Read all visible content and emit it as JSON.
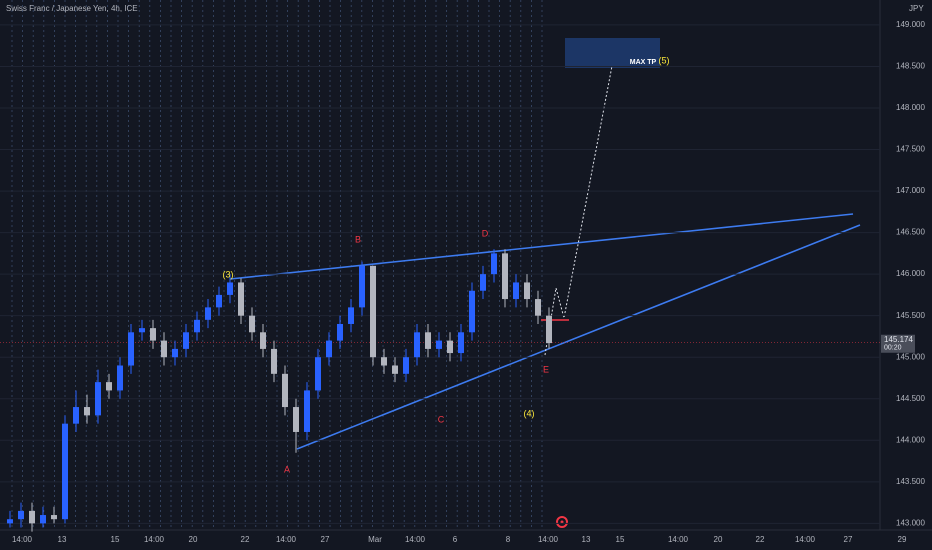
{
  "chart_data": {
    "type": "candlestick",
    "title": "Swiss Franc / Japanese Yen, 4h, ICE",
    "y_unit": "JPY",
    "open": [
      143.0,
      143.05,
      143.15,
      143.0,
      143.1,
      143.05,
      144.2,
      144.4,
      144.3,
      144.7,
      144.6,
      144.9,
      145.3,
      145.35,
      145.2,
      145.0,
      145.1,
      145.3,
      145.45,
      145.6,
      145.75,
      145.9,
      145.5,
      145.3,
      145.1,
      144.8,
      144.4,
      144.1,
      144.6,
      145.0,
      145.2,
      145.4,
      145.6,
      146.1,
      145.0,
      144.9,
      144.8,
      145.0,
      145.3,
      145.1,
      145.2,
      145.05,
      145.3,
      145.8,
      146.0,
      146.25,
      145.7,
      145.9,
      145.7,
      145.5
    ],
    "high": [
      143.15,
      143.25,
      143.25,
      143.2,
      143.2,
      144.3,
      144.6,
      144.55,
      144.85,
      144.8,
      145.0,
      145.4,
      145.45,
      145.45,
      145.3,
      145.2,
      145.4,
      145.55,
      145.7,
      145.85,
      146.0,
      145.95,
      145.6,
      145.4,
      145.2,
      144.9,
      144.5,
      144.7,
      145.1,
      145.3,
      145.5,
      145.7,
      146.15,
      146.1,
      145.1,
      145.0,
      145.1,
      145.4,
      145.4,
      145.3,
      145.3,
      145.4,
      145.9,
      146.1,
      146.3,
      146.3,
      146.0,
      146.0,
      145.8,
      145.6
    ],
    "low": [
      142.95,
      142.95,
      142.9,
      142.95,
      143.0,
      143.0,
      144.1,
      144.2,
      144.2,
      144.5,
      144.5,
      144.8,
      145.2,
      145.1,
      144.9,
      144.9,
      145.0,
      145.2,
      145.35,
      145.5,
      145.65,
      145.4,
      145.2,
      145.0,
      144.7,
      144.3,
      143.85,
      144.0,
      144.5,
      144.9,
      145.1,
      145.3,
      145.5,
      144.9,
      144.8,
      144.7,
      144.7,
      144.9,
      145.0,
      145.0,
      144.95,
      144.95,
      145.2,
      145.7,
      145.9,
      145.6,
      145.6,
      145.6,
      145.4,
      145.1
    ],
    "close": [
      143.05,
      143.15,
      143.0,
      143.1,
      143.05,
      144.2,
      144.4,
      144.3,
      144.7,
      144.6,
      144.9,
      145.3,
      145.35,
      145.2,
      145.0,
      145.1,
      145.3,
      145.45,
      145.6,
      145.75,
      145.9,
      145.5,
      145.3,
      145.1,
      144.8,
      144.4,
      144.1,
      144.6,
      145.0,
      145.2,
      145.4,
      145.6,
      146.1,
      145.0,
      144.9,
      144.8,
      145.0,
      145.3,
      145.1,
      145.2,
      145.05,
      145.3,
      145.8,
      146.0,
      146.25,
      145.7,
      145.9,
      145.7,
      145.5,
      145.17
    ],
    "up_color": "#2962ff",
    "down_color": "#b2b5be",
    "ylim": [
      142.92,
      149.3
    ],
    "yticks": [
      {
        "value": 143,
        "label": "143.000"
      },
      {
        "value": 143.5,
        "label": "143.500"
      },
      {
        "value": 144,
        "label": "144.000"
      },
      {
        "value": 144.5,
        "label": "144.500"
      },
      {
        "value": 145,
        "label": "145.000"
      },
      {
        "value": 145.5,
        "label": "145.500"
      },
      {
        "value": 146,
        "label": "146.000"
      },
      {
        "value": 146.5,
        "label": "146.500"
      },
      {
        "value": 147,
        "label": "147.000"
      },
      {
        "value": 147.5,
        "label": "147.500"
      },
      {
        "value": 148,
        "label": "148.000"
      },
      {
        "value": 148.5,
        "label": "148.500"
      },
      {
        "value": 149,
        "label": "149.000"
      }
    ],
    "x_labels": [
      "14:00",
      "13",
      "15",
      "14:00",
      "20",
      "22",
      "14:00",
      "27",
      "Mar",
      "14:00",
      "6",
      "8",
      "14:00",
      "13",
      "15",
      "14:00",
      "20",
      "22",
      "14:00",
      "27",
      "29"
    ],
    "grid": true,
    "price_tag": {
      "value": 145.174,
      "countdown": "00:20"
    },
    "annotations": [
      "(3)",
      "B",
      "D",
      "A",
      "C",
      "E",
      "(4)",
      "MAX TP",
      "(5)"
    ]
  }
}
